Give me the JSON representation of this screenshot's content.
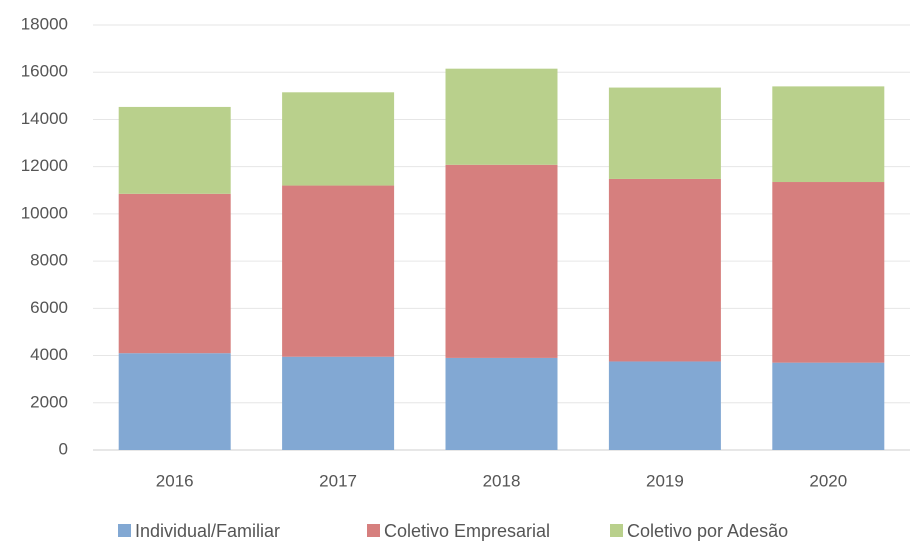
{
  "chart_data": {
    "type": "stacked_bar",
    "categories": [
      "2016",
      "2017",
      "2018",
      "2019",
      "2020"
    ],
    "series": [
      {
        "name": "Individual/Familiar",
        "color": "#82a8d3",
        "values": [
          4100,
          3950,
          3900,
          3750,
          3700
        ]
      },
      {
        "name": "Coletivo Empresarial",
        "color": "#d67f7e",
        "values": [
          6750,
          7250,
          8180,
          7730,
          7650
        ]
      },
      {
        "name": "Coletivo por Adesão",
        "color": "#b9d08c",
        "values": [
          3680,
          3950,
          4070,
          3870,
          4050
        ]
      }
    ],
    "ylim": [
      0,
      18000
    ],
    "yticks": [
      0,
      2000,
      4000,
      6000,
      8000,
      10000,
      12000,
      14000,
      16000,
      18000
    ],
    "grid": true,
    "legend": "bottom"
  }
}
